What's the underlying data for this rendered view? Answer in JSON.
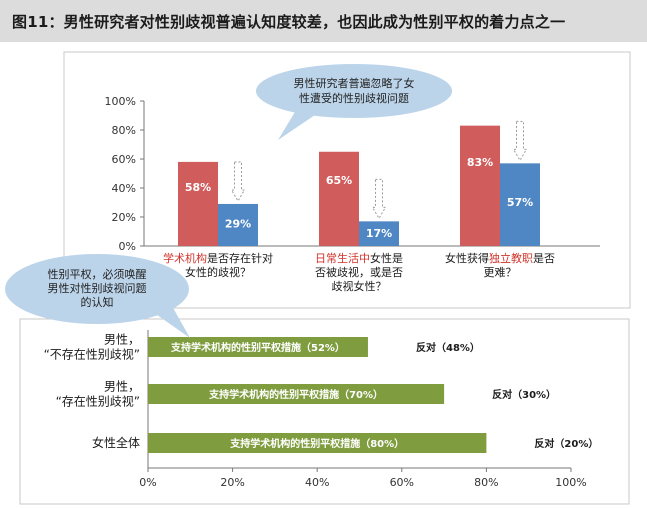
{
  "title": "图11：男性研究者对性别歧视普遍认知度较差，也因此成为性别平权的着力点之一",
  "colors": {
    "red": "#d15c5c",
    "blue": "#4f86c4",
    "green": "#7f9d3f",
    "bubble": "#bcd4ea",
    "highlight_text": "#d0342c",
    "panel_border": "#c8c8c8"
  },
  "chart_data": [
    {
      "type": "bar",
      "y_ticks": [
        "0%",
        "20%",
        "40%",
        "60%",
        "80%",
        "100%"
      ],
      "ylim": [
        0,
        100
      ],
      "categories": [
        {
          "lines": [
            [
              {
                "text": "学术机构",
                "hl": true
              },
              {
                "text": "是否存在针对",
                "hl": false
              }
            ],
            [
              {
                "text": "女性的歧视？",
                "hl": false
              }
            ]
          ]
        },
        {
          "lines": [
            [
              {
                "text": "日常生活中",
                "hl": true
              },
              {
                "text": "女性是",
                "hl": false
              }
            ],
            [
              {
                "text": "否被歧视，或是否",
                "hl": false
              }
            ],
            [
              {
                "text": "歧视女性？",
                "hl": false
              }
            ]
          ]
        },
        {
          "lines": [
            [
              {
                "text": "女性获得",
                "hl": false
              },
              {
                "text": "独立教职",
                "hl": true
              },
              {
                "text": "是否",
                "hl": false
              }
            ],
            [
              {
                "text": "更难？",
                "hl": false
              }
            ]
          ]
        }
      ],
      "series": [
        {
          "color": "red",
          "values": [
            58,
            65,
            83
          ],
          "labels": [
            "58%",
            "65%",
            "83%"
          ]
        },
        {
          "color": "blue",
          "values": [
            29,
            17,
            57
          ],
          "labels": [
            "29%",
            "17%",
            "57%"
          ]
        }
      ],
      "annotation": [
        "男性研究者普遍忽略了女",
        "性遭受的性别歧视问题"
      ]
    },
    {
      "type": "bar",
      "orientation": "horizontal",
      "x_ticks": [
        "0%",
        "20%",
        "40%",
        "60%",
        "80%",
        "100%"
      ],
      "xlim": [
        0,
        100
      ],
      "categories": [
        [
          "男性，",
          "“不存在性别歧视”"
        ],
        [
          "男性，",
          "“存在性别歧视”"
        ],
        [
          "女性全体"
        ]
      ],
      "values": [
        52,
        70,
        80
      ],
      "bar_labels": [
        "支持学术机构的性别平权措施（52%）",
        "支持学术机构的性别平权措施（70%）",
        "支持学术机构的性别平权措施（80%）"
      ],
      "remainder_labels": [
        "反对（48%）",
        "反对（30%）",
        "反对（20%）"
      ],
      "annotation": [
        "性别平权，必须唤醒",
        "男性对性别歧视问题",
        "的认知"
      ]
    }
  ]
}
